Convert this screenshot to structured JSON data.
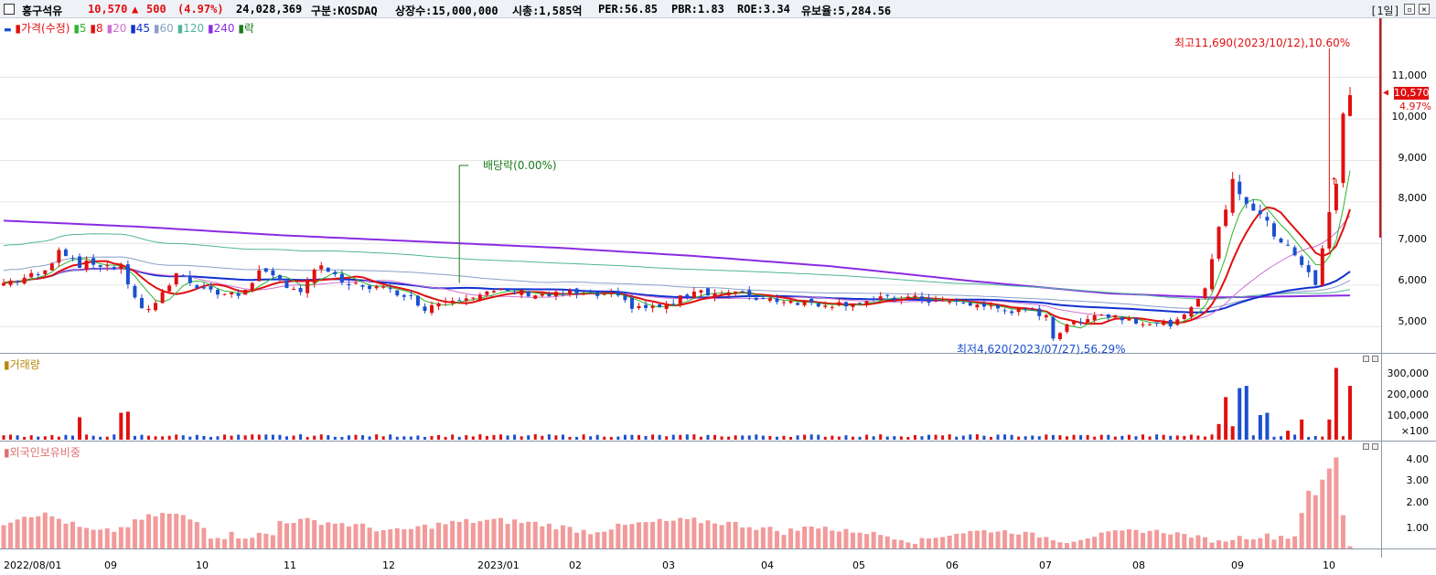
{
  "header": {
    "stock_name": "흥구석유",
    "price": "10,570",
    "change_arrow": "▲",
    "change": "500",
    "change_pct": "(4.97%)",
    "volume": "24,028,369",
    "market": "구분:KOSDAQ",
    "shares": "상장수:15,000,000",
    "market_cap": "시총:1,585억",
    "per": "PER:56.85",
    "pbr": "PBR:1.83",
    "roe": "ROE:3.34",
    "float": "유보율:5,284.56",
    "period": "[1일]"
  },
  "legend": {
    "price": "가격(수정)",
    "ma": [
      {
        "label": "5",
        "color": "#2db52d"
      },
      {
        "label": "8",
        "color": "#e01010"
      },
      {
        "label": "20",
        "color": "#d070d0"
      },
      {
        "label": "45",
        "color": "#1030d0"
      },
      {
        "label": "60",
        "color": "#8aa0c8"
      },
      {
        "label": "120",
        "color": "#4fb59a"
      },
      {
        "label": "240",
        "color": "#8a2be2"
      },
      {
        "label": "락",
        "color": "#1a7a1a"
      }
    ],
    "volume": "거래량",
    "foreign": "외국인보유비중"
  },
  "annotations": {
    "high": "최고11,690(2023/10/12),10.60%",
    "low": "최저4,620(2023/07/27),56.29%",
    "dividend": "배당락(0.00%)",
    "buy_marker": "↑",
    "current_price": "10,570",
    "current_pct": "4.97%"
  },
  "colors": {
    "up": "#e01010",
    "down": "#1a50d0",
    "grid": "#e6e6e6",
    "foreign_bar": "#f29a9a"
  },
  "chart_data": [
    {
      "type": "candlestick",
      "title": "흥구석유",
      "y_ticks": [
        "5,000",
        "6,000",
        "7,000",
        "8,000",
        "9,000",
        "10,000",
        "11,000"
      ],
      "ylim": [
        4500,
        12200
      ],
      "x_ticks": [
        "2022/08/01",
        "09",
        "10",
        "11",
        "12",
        "2023/01",
        "02",
        "03",
        "04",
        "05",
        "06",
        "07",
        "08",
        "09",
        "10"
      ],
      "close_path": [
        [
          0,
          6050
        ],
        [
          6,
          6300
        ],
        [
          8,
          6900
        ],
        [
          11,
          6500
        ],
        [
          14,
          6500
        ],
        [
          17,
          6400
        ],
        [
          20,
          5400
        ],
        [
          22,
          5500
        ],
        [
          25,
          6300
        ],
        [
          28,
          6000
        ],
        [
          31,
          5800
        ],
        [
          34,
          5750
        ],
        [
          37,
          6300
        ],
        [
          40,
          6100
        ],
        [
          43,
          5850
        ],
        [
          46,
          6500
        ],
        [
          49,
          6000
        ],
        [
          52,
          6000
        ],
        [
          55,
          5900
        ],
        [
          58,
          5800
        ],
        [
          61,
          5450
        ],
        [
          64,
          5650
        ],
        [
          67,
          5750
        ],
        [
          70,
          5800
        ],
        [
          73,
          5850
        ],
        [
          76,
          5800
        ],
        [
          79,
          5750
        ],
        [
          82,
          5800
        ],
        [
          85,
          5750
        ],
        [
          88,
          5750
        ],
        [
          91,
          5500
        ],
        [
          94,
          5450
        ],
        [
          97,
          5550
        ],
        [
          100,
          5900
        ],
        [
          103,
          5800
        ],
        [
          106,
          5800
        ],
        [
          109,
          5700
        ],
        [
          112,
          5650
        ],
        [
          115,
          5600
        ],
        [
          118,
          5550
        ],
        [
          121,
          5550
        ],
        [
          124,
          5600
        ],
        [
          127,
          5650
        ],
        [
          130,
          5700
        ],
        [
          133,
          5650
        ],
        [
          136,
          5600
        ],
        [
          139,
          5550
        ],
        [
          142,
          5500
        ],
        [
          145,
          5400
        ],
        [
          148,
          5350
        ],
        [
          151,
          5300
        ],
        [
          152,
          4750
        ],
        [
          155,
          5100
        ],
        [
          158,
          5300
        ],
        [
          161,
          5250
        ],
        [
          164,
          5150
        ],
        [
          167,
          5050
        ],
        [
          170,
          5100
        ],
        [
          172,
          5400
        ],
        [
          174,
          6000
        ],
        [
          176,
          7300
        ],
        [
          178,
          8500
        ],
        [
          180,
          8000
        ],
        [
          182,
          7700
        ],
        [
          184,
          7200
        ],
        [
          186,
          7000
        ],
        [
          188,
          6500
        ],
        [
          190,
          6000
        ],
        [
          192,
          7700
        ],
        [
          193,
          8500
        ],
        [
          194,
          10200
        ],
        [
          195,
          10570
        ]
      ],
      "ma240_path": [
        [
          0,
          7550
        ],
        [
          20,
          7400
        ],
        [
          40,
          7200
        ],
        [
          60,
          7050
        ],
        [
          80,
          6900
        ],
        [
          100,
          6700
        ],
        [
          120,
          6450
        ],
        [
          140,
          6100
        ],
        [
          160,
          5800
        ],
        [
          175,
          5700
        ],
        [
          195,
          5750
        ]
      ],
      "volume_yticks": [
        "×100",
        "100,000",
        "200,000",
        "300,000"
      ],
      "volume_spikes": [
        [
          11,
          100000
        ],
        [
          17,
          120000
        ],
        [
          18,
          125000
        ],
        [
          176,
          70000
        ],
        [
          177,
          190000
        ],
        [
          178,
          60000
        ],
        [
          179,
          230000
        ],
        [
          180,
          240000
        ],
        [
          182,
          110000
        ],
        [
          183,
          120000
        ],
        [
          186,
          40000
        ],
        [
          188,
          90000
        ],
        [
          192,
          90000
        ],
        [
          193,
          320000
        ],
        [
          195,
          240000
        ]
      ],
      "foreign_yticks": [
        "1.00",
        "2.00",
        "3.00",
        "4.00"
      ],
      "foreign_ylim": [
        0,
        4.2
      ]
    }
  ]
}
